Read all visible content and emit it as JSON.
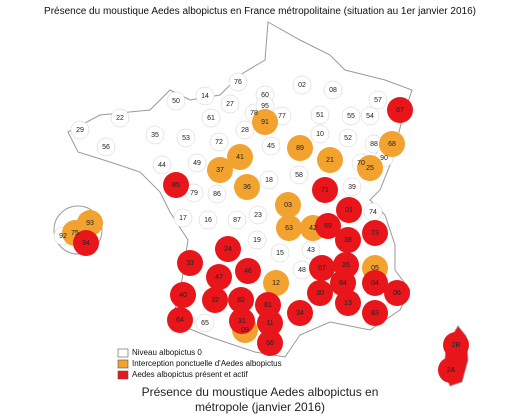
{
  "title": "Présence du moustique Aedes albopictus en France métropolitaine (situation au 1er janvier 2016)",
  "legend": [
    {
      "label": "Niveau albopictus 0",
      "color": "#ffffff",
      "departments": [
        "50",
        "76",
        "60",
        "02",
        "08",
        "55",
        "54",
        "51",
        "10",
        "52",
        "88",
        "70",
        "77",
        "78",
        "95",
        "61",
        "28",
        "72",
        "53",
        "35",
        "22",
        "29",
        "56",
        "44",
        "49",
        "45",
        "18",
        "58",
        "86",
        "79",
        "17",
        "16",
        "87",
        "23",
        "39",
        "74",
        "19",
        "15",
        "43",
        "48",
        "65",
        "92",
        "27",
        "14",
        "57",
        "90"
      ]
    },
    {
      "label": "Interception ponctuelle d'Aedes albopictus",
      "color": "#f2a22f",
      "departments": [
        "89",
        "21",
        "41",
        "37",
        "36",
        "03",
        "25",
        "68",
        "42",
        "63",
        "05",
        "12",
        "09",
        "93",
        "75",
        "91"
      ]
    },
    {
      "label": "Aedes albopictus présent et actif",
      "color": "#e8161b",
      "departments": [
        "85",
        "71",
        "67",
        "01",
        "73",
        "69",
        "38",
        "07",
        "26",
        "04",
        "06",
        "24",
        "33",
        "47",
        "46",
        "30",
        "84",
        "13",
        "83",
        "82",
        "81",
        "34",
        "40",
        "64",
        "32",
        "31",
        "11",
        "66",
        "2B",
        "2A",
        "94"
      ]
    }
  ],
  "caption": [
    "Présence du moustique Aedes albopictus en",
    "métropole (janvier 2016)"
  ]
}
